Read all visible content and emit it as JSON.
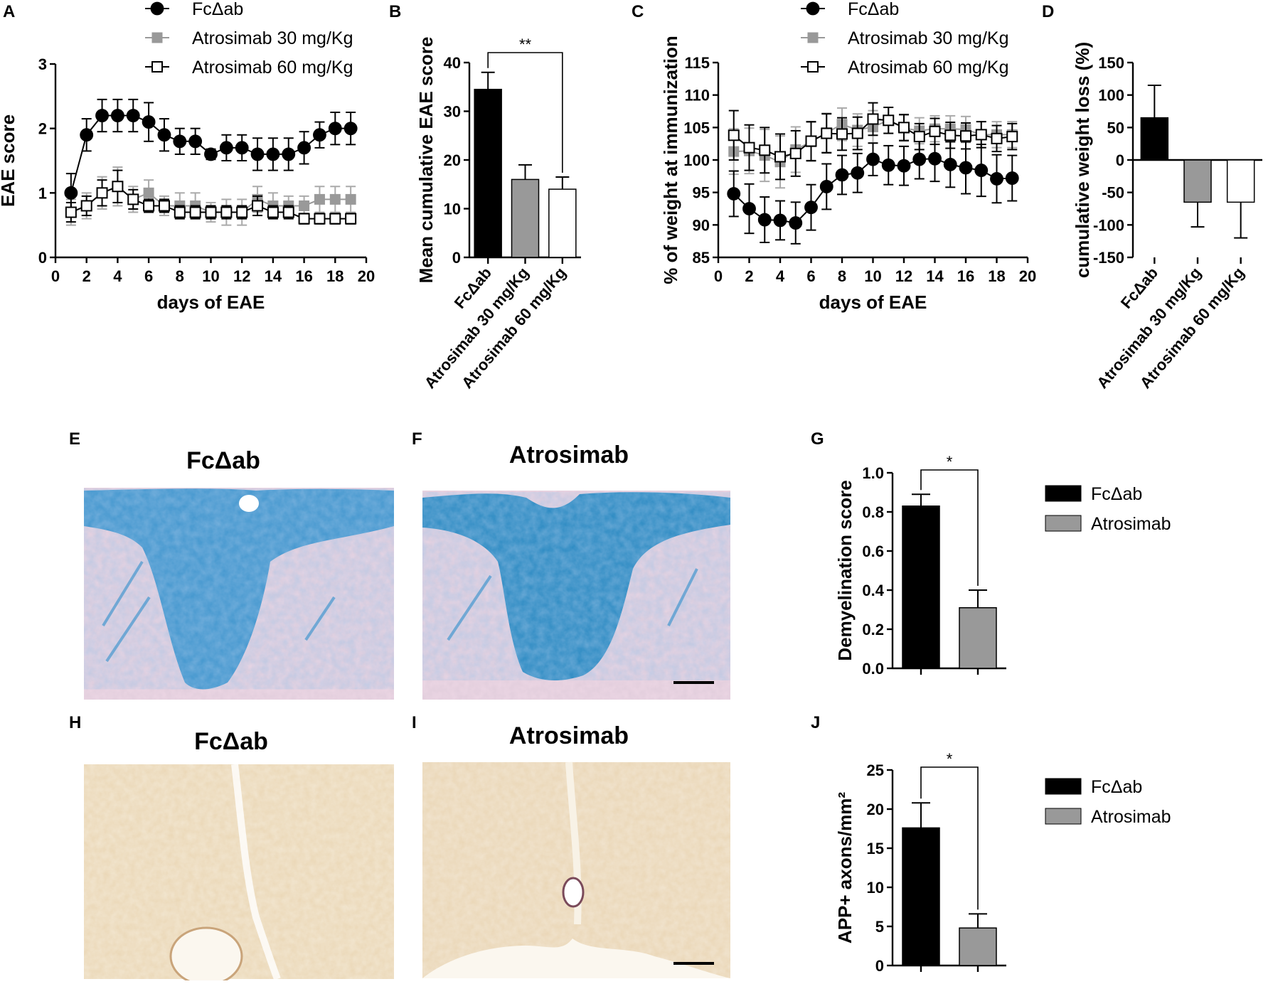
{
  "panel_labels": {
    "A": "A",
    "B": "B",
    "C": "C",
    "D": "D",
    "E": "E",
    "F": "F",
    "G": "G",
    "H": "H",
    "I": "I",
    "J": "J"
  },
  "colors": {
    "fc": "#000000",
    "a30": "#999999",
    "a60": "#ffffff",
    "alcian_blue": "#2f8fcc",
    "pink_bg": "#eed9e6",
    "brown_bg": "#f2e4cc"
  },
  "images": {
    "E": {
      "title": "FcΔab",
      "description": "Luxol fast blue histology"
    },
    "F": {
      "title": "Atrosimab",
      "description": "Luxol fast blue histology"
    },
    "H": {
      "title": "FcΔab",
      "description": "APP immunostaining"
    },
    "I": {
      "title": "Atrosimab",
      "description": "APP immunostaining"
    }
  },
  "chart_data": [
    {
      "id": "A",
      "type": "line",
      "xlabel": "days of EAE",
      "ylabel": "EAE score",
      "xlim": [
        0,
        20
      ],
      "ylim": [
        0,
        3
      ],
      "xticks": [
        "0",
        "2",
        "4",
        "6",
        "8",
        "10",
        "12",
        "14",
        "16",
        "18",
        "20"
      ],
      "yticks": [
        "0",
        "1",
        "2",
        "3"
      ],
      "x": [
        1,
        2,
        3,
        4,
        5,
        6,
        7,
        8,
        9,
        10,
        11,
        12,
        13,
        14,
        15,
        16,
        17,
        18,
        19
      ],
      "legend": [
        "FcΔab",
        "Atrosimab 30 mg/Kg",
        "Atrosimab 60 mg/Kg"
      ],
      "series": [
        {
          "name": "FcΔab",
          "marker": "circle",
          "color": "#000000",
          "values": [
            1.0,
            1.9,
            2.2,
            2.2,
            2.2,
            2.1,
            1.9,
            1.8,
            1.8,
            1.6,
            1.7,
            1.7,
            1.6,
            1.6,
            1.6,
            1.7,
            1.9,
            2.0,
            2.0
          ],
          "errors": [
            0.3,
            0.25,
            0.25,
            0.25,
            0.25,
            0.3,
            0.25,
            0.2,
            0.2,
            0.08,
            0.2,
            0.2,
            0.25,
            0.25,
            0.25,
            0.25,
            0.2,
            0.25,
            0.25
          ]
        },
        {
          "name": "Atrosimab 30 mg/Kg",
          "marker": "square",
          "color": "#999999",
          "values": [
            0.7,
            0.8,
            1.0,
            1.1,
            0.9,
            1.0,
            0.8,
            0.8,
            0.8,
            0.7,
            0.7,
            0.7,
            0.9,
            0.8,
            0.8,
            0.8,
            0.9,
            0.9,
            0.9
          ],
          "errors": [
            0.2,
            0.2,
            0.25,
            0.3,
            0.2,
            0.2,
            0.15,
            0.2,
            0.2,
            0.15,
            0.2,
            0.2,
            0.2,
            0.2,
            0.15,
            0.15,
            0.2,
            0.2,
            0.2
          ]
        },
        {
          "name": "Atrosimab 60 mg/Kg",
          "marker": "open-square",
          "color": "#ffffff",
          "values": [
            0.7,
            0.8,
            1.0,
            1.1,
            0.9,
            0.8,
            0.8,
            0.7,
            0.7,
            0.7,
            0.7,
            0.7,
            0.8,
            0.7,
            0.7,
            0.6,
            0.6,
            0.6,
            0.6
          ],
          "errors": [
            0.15,
            0.15,
            0.2,
            0.25,
            0.15,
            0.1,
            0.1,
            0.1,
            0.1,
            0.1,
            0.1,
            0.1,
            0.15,
            0.1,
            0.1,
            0.08,
            0.08,
            0.08,
            0.08
          ]
        }
      ]
    },
    {
      "id": "B",
      "type": "bar",
      "ylabel": "Mean cumulative EAE score",
      "ylim": [
        0,
        40
      ],
      "yticks": [
        "0",
        "10",
        "20",
        "30",
        "40"
      ],
      "categories": [
        "FcΔab",
        "Atrosimab 30 mg/Kg",
        "Atrosimab 60 mg/Kg"
      ],
      "values": [
        34.5,
        16.0,
        14.0
      ],
      "errors": [
        3.5,
        3.0,
        2.5
      ],
      "fills": [
        "#000000",
        "#999999",
        "#ffffff"
      ],
      "annotations": [
        {
          "from": 0,
          "to": 2,
          "text": "**"
        }
      ]
    },
    {
      "id": "C",
      "type": "line",
      "xlabel": "days of EAE",
      "ylabel": "% of weight at immunization",
      "xlim": [
        0,
        20
      ],
      "ylim": [
        85,
        115
      ],
      "xticks": [
        "0",
        "2",
        "4",
        "6",
        "8",
        "10",
        "12",
        "14",
        "16",
        "18",
        "20"
      ],
      "yticks": [
        "85",
        "90",
        "95",
        "100",
        "105",
        "110",
        "115"
      ],
      "x": [
        1,
        2,
        3,
        4,
        5,
        6,
        7,
        8,
        9,
        10,
        11,
        12,
        13,
        14,
        15,
        16,
        17,
        18,
        19
      ],
      "legend": [
        "FcΔab",
        "Atrosimab 30 mg/Kg",
        "Atrosimab 60 mg/Kg"
      ],
      "series": [
        {
          "name": "FcΔab",
          "marker": "circle",
          "color": "#000000",
          "values": [
            94.8,
            92.5,
            90.8,
            90.7,
            90.3,
            92.7,
            95.9,
            97.7,
            98.0,
            100.1,
            99.2,
            99.1,
            100.1,
            100.2,
            99.3,
            98.8,
            98.4,
            97.1,
            97.2
          ],
          "errors": [
            3.5,
            3.8,
            3.5,
            3.0,
            3.2,
            3.5,
            3.5,
            3.0,
            3.0,
            2.5,
            3.0,
            3.0,
            3.0,
            3.5,
            3.5,
            4.0,
            4.0,
            3.7,
            3.5
          ]
        },
        {
          "name": "Atrosimab 30 mg/Kg",
          "marker": "square",
          "color": "#999999",
          "values": [
            101.3,
            101.4,
            100.7,
            99.7,
            101.6,
            102.8,
            104.2,
            105.5,
            104.6,
            105.1,
            106.1,
            104.9,
            104.5,
            104.8,
            104.8,
            104.7,
            103.9,
            103.9,
            103.9
          ],
          "errors": [
            3.5,
            3.5,
            4.0,
            4.0,
            3.5,
            3.0,
            3.0,
            2.5,
            2.5,
            2.5,
            2.0,
            2.0,
            2.0,
            2.0,
            2.0,
            2.0,
            2.0,
            2.0,
            2.0
          ]
        },
        {
          "name": "Atrosimab 60 mg/Kg",
          "marker": "open-square",
          "color": "#ffffff",
          "values": [
            103.8,
            101.9,
            101.5,
            100.5,
            101.0,
            102.9,
            104.1,
            104.0,
            104.1,
            106.3,
            106.1,
            105.0,
            103.6,
            104.4,
            103.8,
            103.7,
            103.9,
            103.3,
            103.6
          ],
          "errors": [
            3.8,
            3.5,
            3.5,
            3.5,
            3.5,
            3.0,
            3.0,
            2.5,
            2.5,
            2.5,
            2.0,
            2.0,
            2.0,
            2.0,
            2.0,
            2.0,
            2.0,
            2.0,
            2.0
          ]
        }
      ]
    },
    {
      "id": "D",
      "type": "bar",
      "ylabel": "cumulative weight loss (%)",
      "ylim": [
        -150,
        150
      ],
      "yticks": [
        "-150",
        "-100",
        "-50",
        "0",
        "50",
        "100",
        "150"
      ],
      "categories": [
        "FcΔab",
        "Atrosimab 30 mg/Kg",
        "Atrosimab 60 mg/Kg"
      ],
      "values": [
        65,
        -65,
        -65
      ],
      "errors": [
        50,
        38,
        55
      ],
      "fills": [
        "#000000",
        "#999999",
        "#ffffff"
      ]
    },
    {
      "id": "G",
      "type": "bar",
      "ylabel": "Demyelination score",
      "ylim": [
        0,
        1.0
      ],
      "yticks": [
        "0.0",
        "0.2",
        "0.4",
        "0.6",
        "0.8",
        "1.0"
      ],
      "categories": [
        "FcΔab",
        "Atrosimab"
      ],
      "values": [
        0.83,
        0.31
      ],
      "errors": [
        0.06,
        0.09
      ],
      "fills": [
        "#000000",
        "#999999"
      ],
      "legend": [
        "FcΔab",
        "Atrosimab"
      ],
      "annotations": [
        {
          "from": 0,
          "to": 1,
          "text": "*"
        }
      ]
    },
    {
      "id": "J",
      "type": "bar",
      "ylabel": "APP+ axons/mm²",
      "ylim": [
        0,
        25
      ],
      "yticks": [
        "0",
        "5",
        "10",
        "15",
        "20",
        "25"
      ],
      "categories": [
        "FcΔab",
        "Atrosimab"
      ],
      "values": [
        17.6,
        4.8
      ],
      "errors": [
        3.2,
        1.8
      ],
      "fills": [
        "#000000",
        "#999999"
      ],
      "legend": [
        "FcΔab",
        "Atrosimab"
      ],
      "annotations": [
        {
          "from": 0,
          "to": 1,
          "text": "*"
        }
      ]
    }
  ]
}
